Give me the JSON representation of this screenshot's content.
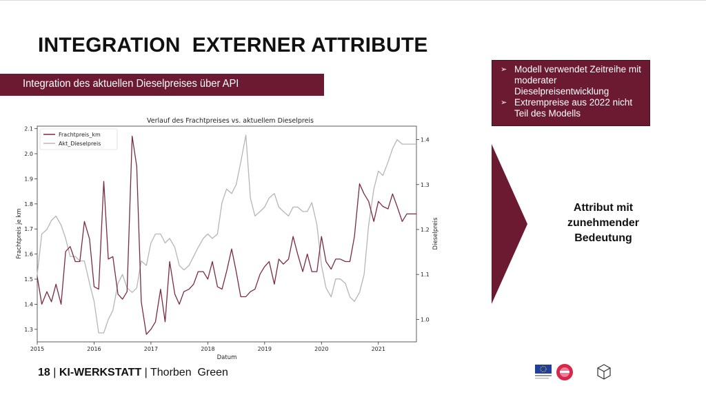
{
  "slide": {
    "title": "INTEGRATION  EXTERNER ATTRIBUTE",
    "subtitle": "Integration des aktuellen Dieselpreises über API",
    "bullets": [
      "Modell verwendet Zeitreihe mit moderater Dieselpreisentwicklung",
      "Extrempreise aus 2022 nicht Teil des Modells"
    ],
    "side_text": [
      "Attribut mit",
      "zunehmender",
      "Bedeutung"
    ],
    "footer": {
      "page": "18",
      "sep1": " | ",
      "brand": "KI-WERKSTATT",
      "sep2": " | ",
      "author": "Thorben  Green"
    },
    "colors": {
      "brand": "#6b1a31",
      "series1": "#7b2a3e",
      "series2": "#b5b5b5"
    },
    "icons": [
      "eu-flag-icon",
      "circle-logo-icon",
      "hexagon-cube-icon"
    ]
  },
  "chart_data": {
    "type": "line",
    "title": "Verlauf des Frachtpreises vs. aktuellem Dieselpreis",
    "xlabel": "Datum",
    "ylabel_left": "Frachtpreis je km",
    "ylabel_right": "Dieselpreis",
    "x_ticks": [
      "2015",
      "2016",
      "2017",
      "2018",
      "2019",
      "2020",
      "2021"
    ],
    "y_left_ticks": [
      "1.3",
      "1.4",
      "1.5",
      "1.6",
      "1.7",
      "1.8",
      "1.9",
      "2.0",
      "2.1"
    ],
    "y_right_ticks": [
      "1.0",
      "1.1",
      "1.2",
      "1.3",
      "1.4"
    ],
    "ylim_left": [
      1.25,
      2.11
    ],
    "ylim_right": [
      0.95,
      1.43
    ],
    "xlim": [
      2015.0,
      2021.67
    ],
    "legend": "top-left",
    "grid": false,
    "series": [
      {
        "name": "Frachtpreis_km",
        "axis": "left",
        "x": [
          2015.0,
          2015.08,
          2015.17,
          2015.25,
          2015.33,
          2015.42,
          2015.5,
          2015.58,
          2015.67,
          2015.75,
          2015.83,
          2015.92,
          2016.0,
          2016.08,
          2016.17,
          2016.25,
          2016.33,
          2016.42,
          2016.5,
          2016.58,
          2016.67,
          2016.75,
          2016.83,
          2016.92,
          2017.0,
          2017.08,
          2017.17,
          2017.25,
          2017.33,
          2017.42,
          2017.5,
          2017.58,
          2017.67,
          2017.75,
          2017.83,
          2017.92,
          2018.0,
          2018.08,
          2018.17,
          2018.25,
          2018.33,
          2018.42,
          2018.5,
          2018.58,
          2018.67,
          2018.75,
          2018.83,
          2018.92,
          2019.0,
          2019.08,
          2019.17,
          2019.25,
          2019.33,
          2019.42,
          2019.5,
          2019.58,
          2019.67,
          2019.75,
          2019.83,
          2019.92,
          2020.0,
          2020.08,
          2020.17,
          2020.25,
          2020.33,
          2020.42,
          2020.5,
          2020.58,
          2020.67,
          2020.75,
          2020.83,
          2020.92,
          2021.0,
          2021.08,
          2021.17,
          2021.25,
          2021.33,
          2021.42,
          2021.5,
          2021.58,
          2021.67
        ],
        "values": [
          1.51,
          1.4,
          1.45,
          1.41,
          1.48,
          1.4,
          1.61,
          1.63,
          1.57,
          1.57,
          1.73,
          1.66,
          1.47,
          1.46,
          1.89,
          1.58,
          1.59,
          1.44,
          1.42,
          1.45,
          2.07,
          1.95,
          1.41,
          1.28,
          1.3,
          1.33,
          1.46,
          1.33,
          1.57,
          1.44,
          1.4,
          1.45,
          1.46,
          1.48,
          1.53,
          1.53,
          1.5,
          1.57,
          1.47,
          1.46,
          1.53,
          1.62,
          1.53,
          1.43,
          1.43,
          1.45,
          1.46,
          1.52,
          1.55,
          1.57,
          1.48,
          1.58,
          1.56,
          1.58,
          1.67,
          1.6,
          1.53,
          1.6,
          1.53,
          1.53,
          1.67,
          1.57,
          1.54,
          1.58,
          1.58,
          1.57,
          1.57,
          1.67,
          1.88,
          1.84,
          1.81,
          1.73,
          1.81,
          1.79,
          1.78,
          1.84,
          1.79,
          1.73,
          1.76,
          1.76,
          1.76
        ]
      },
      {
        "name": "Akt_Dieselpreis",
        "axis": "right",
        "x": [
          2015.0,
          2015.08,
          2015.17,
          2015.25,
          2015.33,
          2015.42,
          2015.5,
          2015.58,
          2015.67,
          2015.75,
          2015.83,
          2015.92,
          2016.0,
          2016.08,
          2016.17,
          2016.25,
          2016.33,
          2016.42,
          2016.5,
          2016.58,
          2016.67,
          2016.75,
          2016.83,
          2016.92,
          2017.0,
          2017.08,
          2017.17,
          2017.25,
          2017.33,
          2017.42,
          2017.5,
          2017.58,
          2017.67,
          2017.75,
          2017.83,
          2017.92,
          2018.0,
          2018.08,
          2018.17,
          2018.25,
          2018.33,
          2018.42,
          2018.5,
          2018.58,
          2018.67,
          2018.75,
          2018.83,
          2018.92,
          2019.0,
          2019.08,
          2019.17,
          2019.25,
          2019.33,
          2019.42,
          2019.5,
          2019.58,
          2019.67,
          2019.75,
          2019.83,
          2019.92,
          2020.0,
          2020.08,
          2020.17,
          2020.25,
          2020.33,
          2020.42,
          2020.5,
          2020.58,
          2020.67,
          2020.75,
          2020.83,
          2020.92,
          2021.0,
          2021.08,
          2021.17,
          2021.25,
          2021.33,
          2021.42,
          2021.5,
          2021.58,
          2021.67
        ],
        "values": [
          1.1,
          1.19,
          1.2,
          1.22,
          1.23,
          1.21,
          1.18,
          1.14,
          1.14,
          1.13,
          1.13,
          1.08,
          1.04,
          0.97,
          0.97,
          1.0,
          1.02,
          1.08,
          1.1,
          1.07,
          1.06,
          1.07,
          1.13,
          1.12,
          1.17,
          1.19,
          1.19,
          1.17,
          1.18,
          1.16,
          1.12,
          1.11,
          1.12,
          1.14,
          1.16,
          1.18,
          1.19,
          1.18,
          1.19,
          1.26,
          1.29,
          1.28,
          1.3,
          1.35,
          1.41,
          1.27,
          1.23,
          1.24,
          1.25,
          1.27,
          1.28,
          1.25,
          1.24,
          1.23,
          1.25,
          1.25,
          1.24,
          1.24,
          1.26,
          1.21,
          1.12,
          1.07,
          1.05,
          1.09,
          1.09,
          1.08,
          1.05,
          1.04,
          1.06,
          1.1,
          1.21,
          1.29,
          1.33,
          1.32,
          1.35,
          1.38,
          1.4,
          1.39,
          1.39,
          1.39,
          1.39
        ]
      }
    ]
  }
}
